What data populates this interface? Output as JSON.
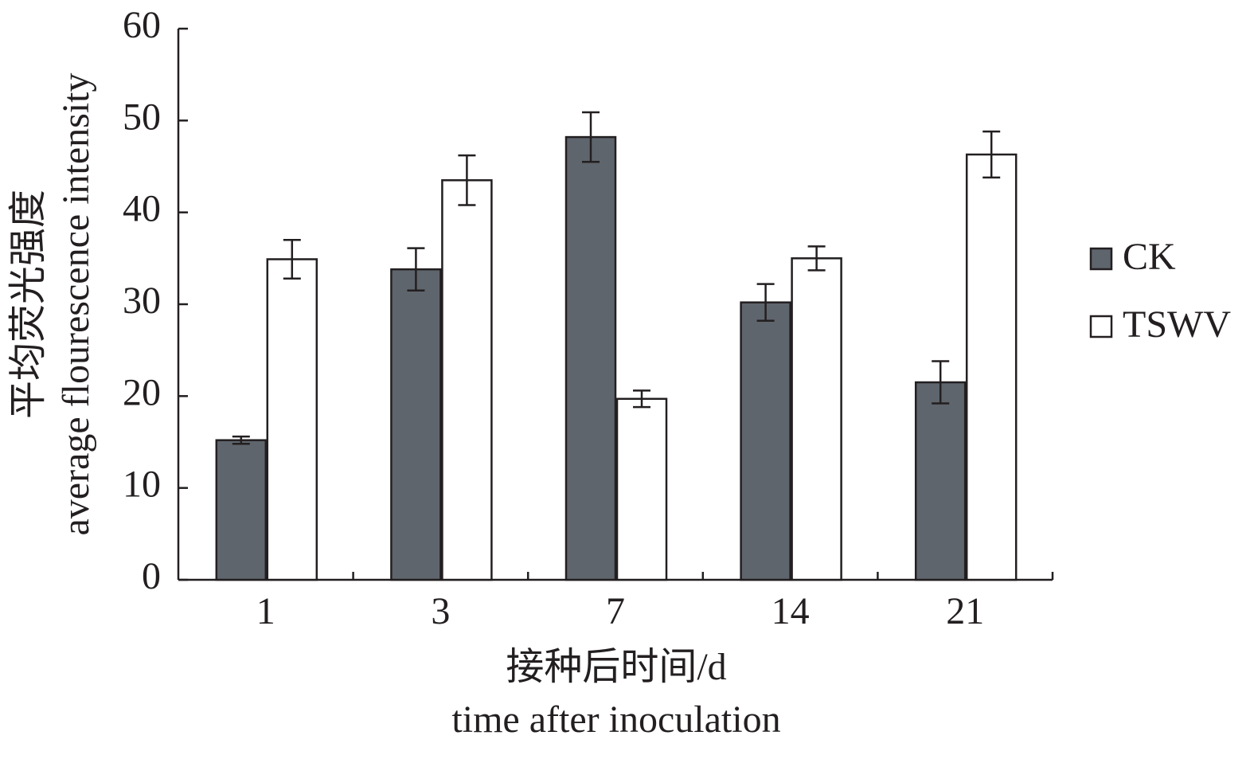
{
  "chart_data": {
    "type": "bar",
    "x_label": [
      "接种后时间/d",
      "time after inoculation"
    ],
    "y_label": [
      "平均荧光强度",
      "average flourescence intensity"
    ],
    "categories": [
      "1",
      "3",
      "7",
      "14",
      "21"
    ],
    "series": [
      {
        "name": "CK",
        "color": "#5f656d",
        "values": [
          15.2,
          33.8,
          48.2,
          30.2,
          21.5
        ],
        "errors": [
          0.4,
          2.3,
          2.7,
          2.0,
          2.3
        ]
      },
      {
        "name": "TSWV",
        "color": "#ffffff",
        "values": [
          34.9,
          43.5,
          19.7,
          35.0,
          46.3
        ],
        "errors": [
          2.1,
          2.7,
          0.9,
          1.3,
          2.5
        ]
      }
    ],
    "ylim": [
      0,
      60
    ],
    "yticks": [
      0,
      10,
      20,
      30,
      40,
      50,
      60
    ],
    "legend": "right"
  }
}
